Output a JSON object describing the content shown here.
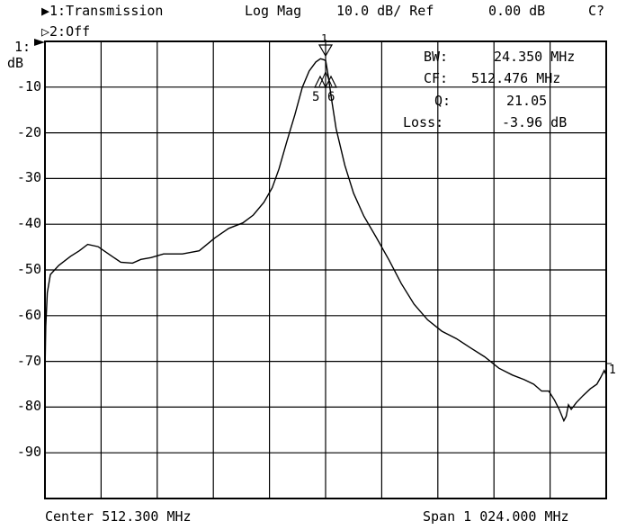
{
  "header": {
    "channel1": "▶1:Transmission",
    "format": "Log Mag",
    "scale": "10.0 dB/ Ref",
    "ref_value": "0.00 dB",
    "cal_status": "C?",
    "channel2": "▷2:Off"
  },
  "ref_marker": "1:",
  "y_unit": "dB",
  "footer": {
    "center": "Center 512.300 MHz",
    "span": "Span 1 024.000 MHz"
  },
  "marker_readout": {
    "bw_label": "BW:",
    "bw_value": "24.350 MHz",
    "cf_label": "CF:",
    "cf_value": "512.476 MHz",
    "q_label": "Q:",
    "q_value": "21.05",
    "loss_label": "Loss:",
    "loss_value": "-3.96 dB"
  },
  "marker_labels": {
    "top": "1",
    "left": "5",
    "right": "6",
    "end": "1"
  },
  "chart_data": {
    "type": "line",
    "xlim": [
      0.3,
      1024.3
    ],
    "ylim": [
      -100,
      0
    ],
    "y_ticks": [
      {
        "value": -10,
        "label": "-10"
      },
      {
        "value": -20,
        "label": "-20"
      },
      {
        "value": -30,
        "label": "-30"
      },
      {
        "value": -40,
        "label": "-40"
      },
      {
        "value": -50,
        "label": "-50"
      },
      {
        "value": -60,
        "label": "-60"
      },
      {
        "value": -70,
        "label": "-70"
      },
      {
        "value": -80,
        "label": "-80"
      },
      {
        "value": -90,
        "label": "-90"
      }
    ],
    "grid": true,
    "series": [
      {
        "x": [
          0.3,
          1.8,
          4.6,
          10.2,
          25.6,
          47.1,
          63.0,
          78.3,
          97.2,
          118.6,
          138.6,
          159.9,
          175.2,
          193.6,
          216.7,
          251.1,
          281.8,
          310.2,
          335.5,
          361.3,
          380.3,
          399.7,
          415.0,
          427.3,
          441.1,
          456.4,
          469.9,
          482.2,
          494.4,
          503.0,
          507.6,
          512.5,
          517.1,
          522.9,
          531.5,
          547.4,
          563.3,
          582.0,
          604.4,
          628.4,
          650.5,
          673.8,
          698.4,
          724.5,
          750.6,
          776.4,
          802.5,
          828.5,
          853.1,
          874.6,
          892.1,
          906.5,
          919.4,
          930.1,
          938.4,
          947.0,
          951.3,
          955.3,
          960.5,
          970.0,
          982.0,
          995.2,
          1007.2,
          1014.3,
          1020.7,
          1024.3
        ],
        "y": [
          -72.8,
          -62.3,
          -55.0,
          -51.0,
          -49.0,
          -47.0,
          -45.8,
          -44.4,
          -44.9,
          -46.7,
          -48.3,
          -48.5,
          -47.7,
          -47.3,
          -46.5,
          -46.5,
          -45.8,
          -43.0,
          -40.9,
          -39.7,
          -38.0,
          -35.2,
          -32.0,
          -27.9,
          -22.1,
          -16.0,
          -10.0,
          -6.5,
          -4.5,
          -3.8,
          -3.96,
          -4.2,
          -7.5,
          -12.5,
          -19.1,
          -27.1,
          -33.2,
          -38.2,
          -42.8,
          -47.9,
          -53.0,
          -57.5,
          -60.9,
          -63.4,
          -65.0,
          -67.0,
          -69.0,
          -71.5,
          -73.0,
          -74.0,
          -75.0,
          -76.5,
          -76.5,
          -78.5,
          -80.5,
          -83.0,
          -82.0,
          -79.5,
          -80.5,
          -79.0,
          -77.5,
          -76.0,
          -75.0,
          -73.5,
          -72.0,
          -73.0
        ]
      }
    ]
  }
}
